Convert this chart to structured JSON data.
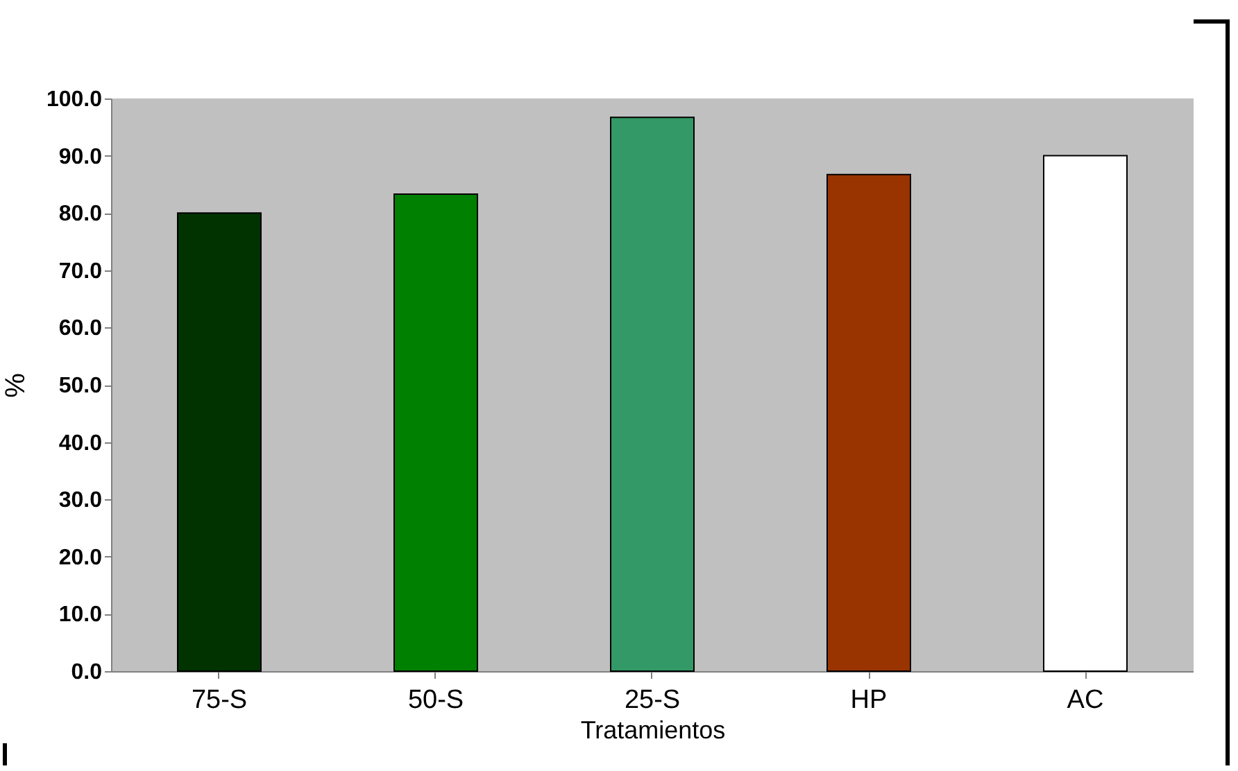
{
  "chart_data": {
    "type": "bar",
    "xlabel": "Tratamientos",
    "ylabel": "%",
    "categories": [
      "75-S",
      "50-S",
      "25-S",
      "HP",
      "AC"
    ],
    "values": [
      80.0,
      83.3,
      96.7,
      86.7,
      90.0
    ],
    "colors": [
      "#003300",
      "#008000",
      "#339966",
      "#993300",
      "#ffffff"
    ],
    "ylim": [
      0,
      100
    ],
    "yticks": [
      {
        "value": 0,
        "label": "0.0"
      },
      {
        "value": 10,
        "label": "10.0"
      },
      {
        "value": 20,
        "label": "20.0"
      },
      {
        "value": 30,
        "label": "30.0"
      },
      {
        "value": 40,
        "label": "40.0"
      },
      {
        "value": 50,
        "label": "50.0"
      },
      {
        "value": 60,
        "label": "60.0"
      },
      {
        "value": 70,
        "label": "70.0"
      },
      {
        "value": 80,
        "label": "80.0"
      },
      {
        "value": 90,
        "label": "90.0"
      },
      {
        "value": 100,
        "label": "100.0"
      }
    ],
    "grid": false,
    "legend": false
  }
}
